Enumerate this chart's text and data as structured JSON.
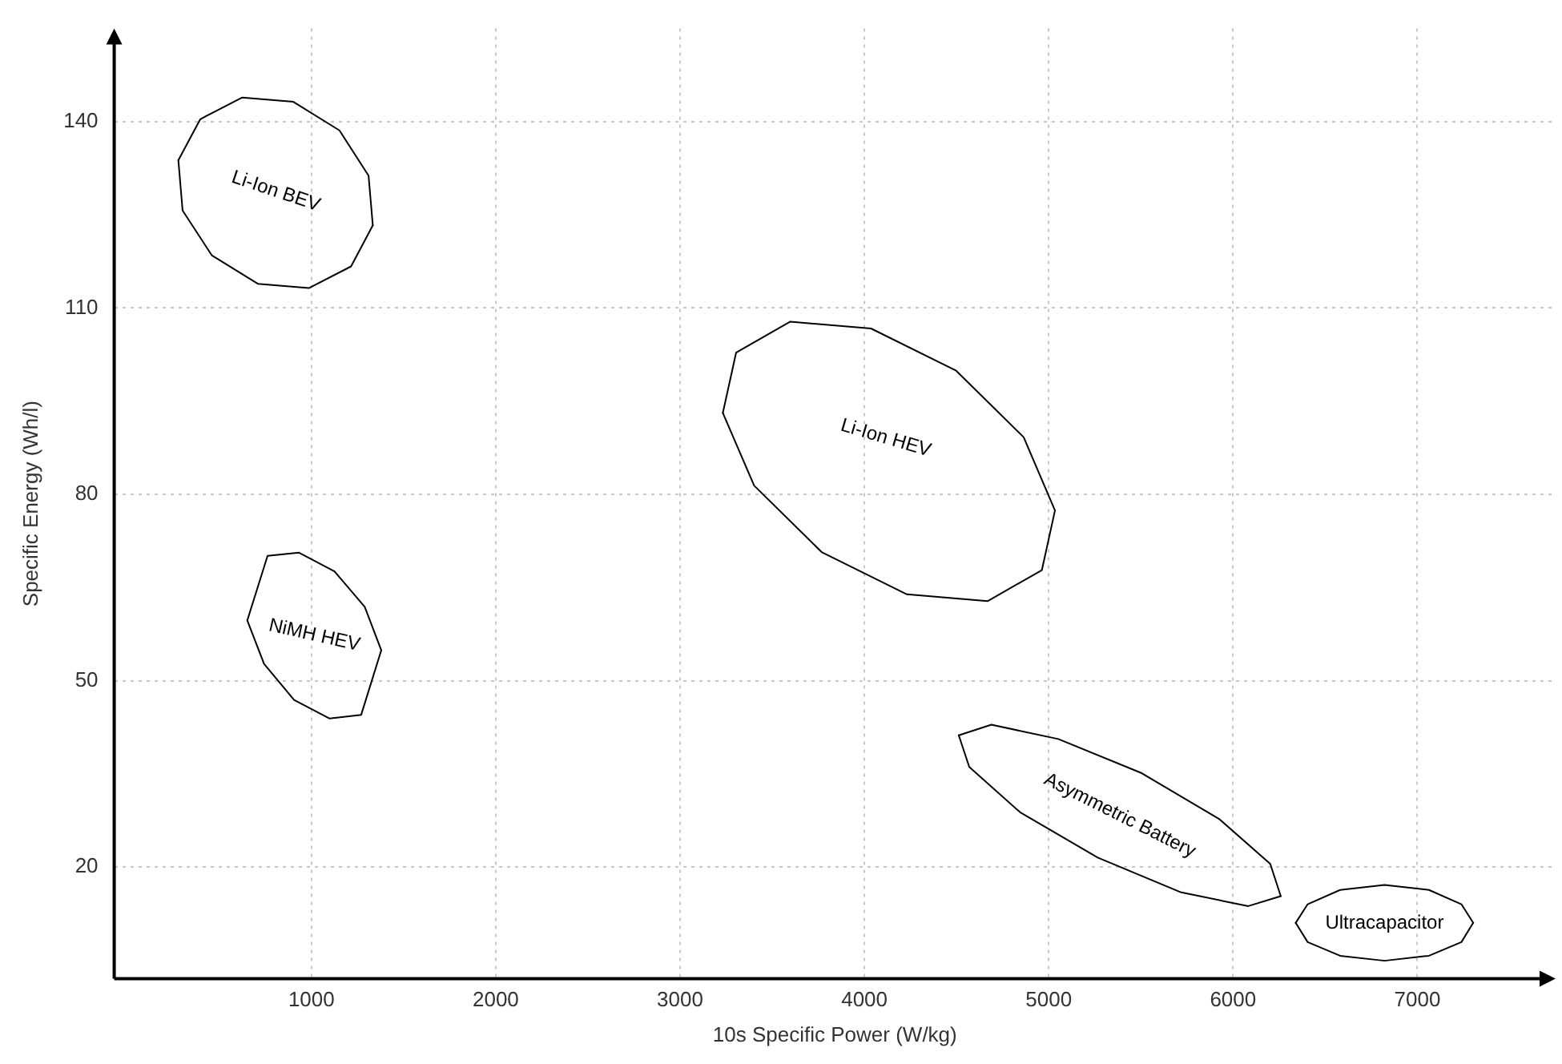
{
  "chart_data": {
    "type": "line",
    "xlabel": "10s Specific Power (W/kg)",
    "ylabel": "Specific Energy (Wh/l)",
    "xlim": [
      -70,
      7750
    ],
    "ylim": [
      2,
      155
    ],
    "xticks": [
      1000,
      2000,
      3000,
      4000,
      5000,
      6000,
      7000
    ],
    "yticks": [
      20,
      50,
      80,
      110,
      140
    ],
    "grid": true,
    "legend": false,
    "marker": "none",
    "line_style": "solid",
    "series": [
      {
        "name": "Li-Ion BEV",
        "color": "#000000",
        "x": [
          278,
          397,
          625,
          902,
          1152,
          1310,
          1333
        ],
        "values": [
          133.8,
          140.4,
          143.9,
          143.2,
          138.6,
          131.3,
          123.3
        ]
      },
      {
        "color": "#000000",
        "x": [
          278,
          301,
          459,
          709,
          986,
          1215,
          1333
        ],
        "values": [
          133.8,
          125.7,
          118.5,
          113.9,
          113.2,
          116.7,
          123.3
        ]
      },
      {
        "name": "NiMH HEV",
        "color": "#000000",
        "x": [
          652,
          762,
          933,
          1125,
          1289,
          1379
        ],
        "values": [
          59.7,
          70.1,
          70.6,
          67.6,
          61.9,
          54.9
        ]
      },
      {
        "color": "#000000",
        "x": [
          652,
          743,
          906,
          1099,
          1270,
          1379
        ],
        "values": [
          59.7,
          52.7,
          46.9,
          43.9,
          44.5,
          54.9
        ]
      },
      {
        "name": "Li-Ion HEV",
        "color": "#000000",
        "x": [
          3232,
          3304,
          3598,
          4036,
          4498,
          4864,
          5034
        ],
        "values": [
          93.1,
          102.8,
          107.8,
          106.7,
          99.9,
          89.2,
          77.4
        ]
      },
      {
        "color": "#000000",
        "x": [
          3232,
          3402,
          3768,
          4231,
          4668,
          4963,
          5034
        ],
        "values": [
          93.1,
          81.4,
          70.7,
          63.9,
          62.8,
          67.8,
          77.4
        ]
      },
      {
        "name": "Asymmetric Battery",
        "color": "#000000",
        "x": [
          4512,
          4689,
          5052,
          5505,
          5926,
          6202,
          6259
        ],
        "values": [
          41.2,
          42.9,
          40.6,
          35.1,
          27.7,
          20.5,
          15.3
        ]
      },
      {
        "color": "#000000",
        "x": [
          4512,
          4569,
          4845,
          5266,
          5719,
          6083,
          6259
        ],
        "values": [
          41.2,
          36.1,
          28.8,
          21.5,
          15.9,
          13.7,
          15.3
        ]
      },
      {
        "name": "Ultracapacitor",
        "color": "#000000",
        "x": [
          6340,
          6405,
          6581,
          6822,
          7063,
          7239,
          7303
        ],
        "values": [
          11.0,
          14.0,
          16.3,
          17.1,
          16.3,
          14.0,
          11.0
        ]
      },
      {
        "color": "#000000",
        "x": [
          6340,
          6405,
          6581,
          6822,
          7063,
          7239,
          7303
        ],
        "values": [
          11.0,
          7.9,
          5.7,
          4.9,
          5.7,
          7.9,
          11.0
        ]
      }
    ]
  }
}
